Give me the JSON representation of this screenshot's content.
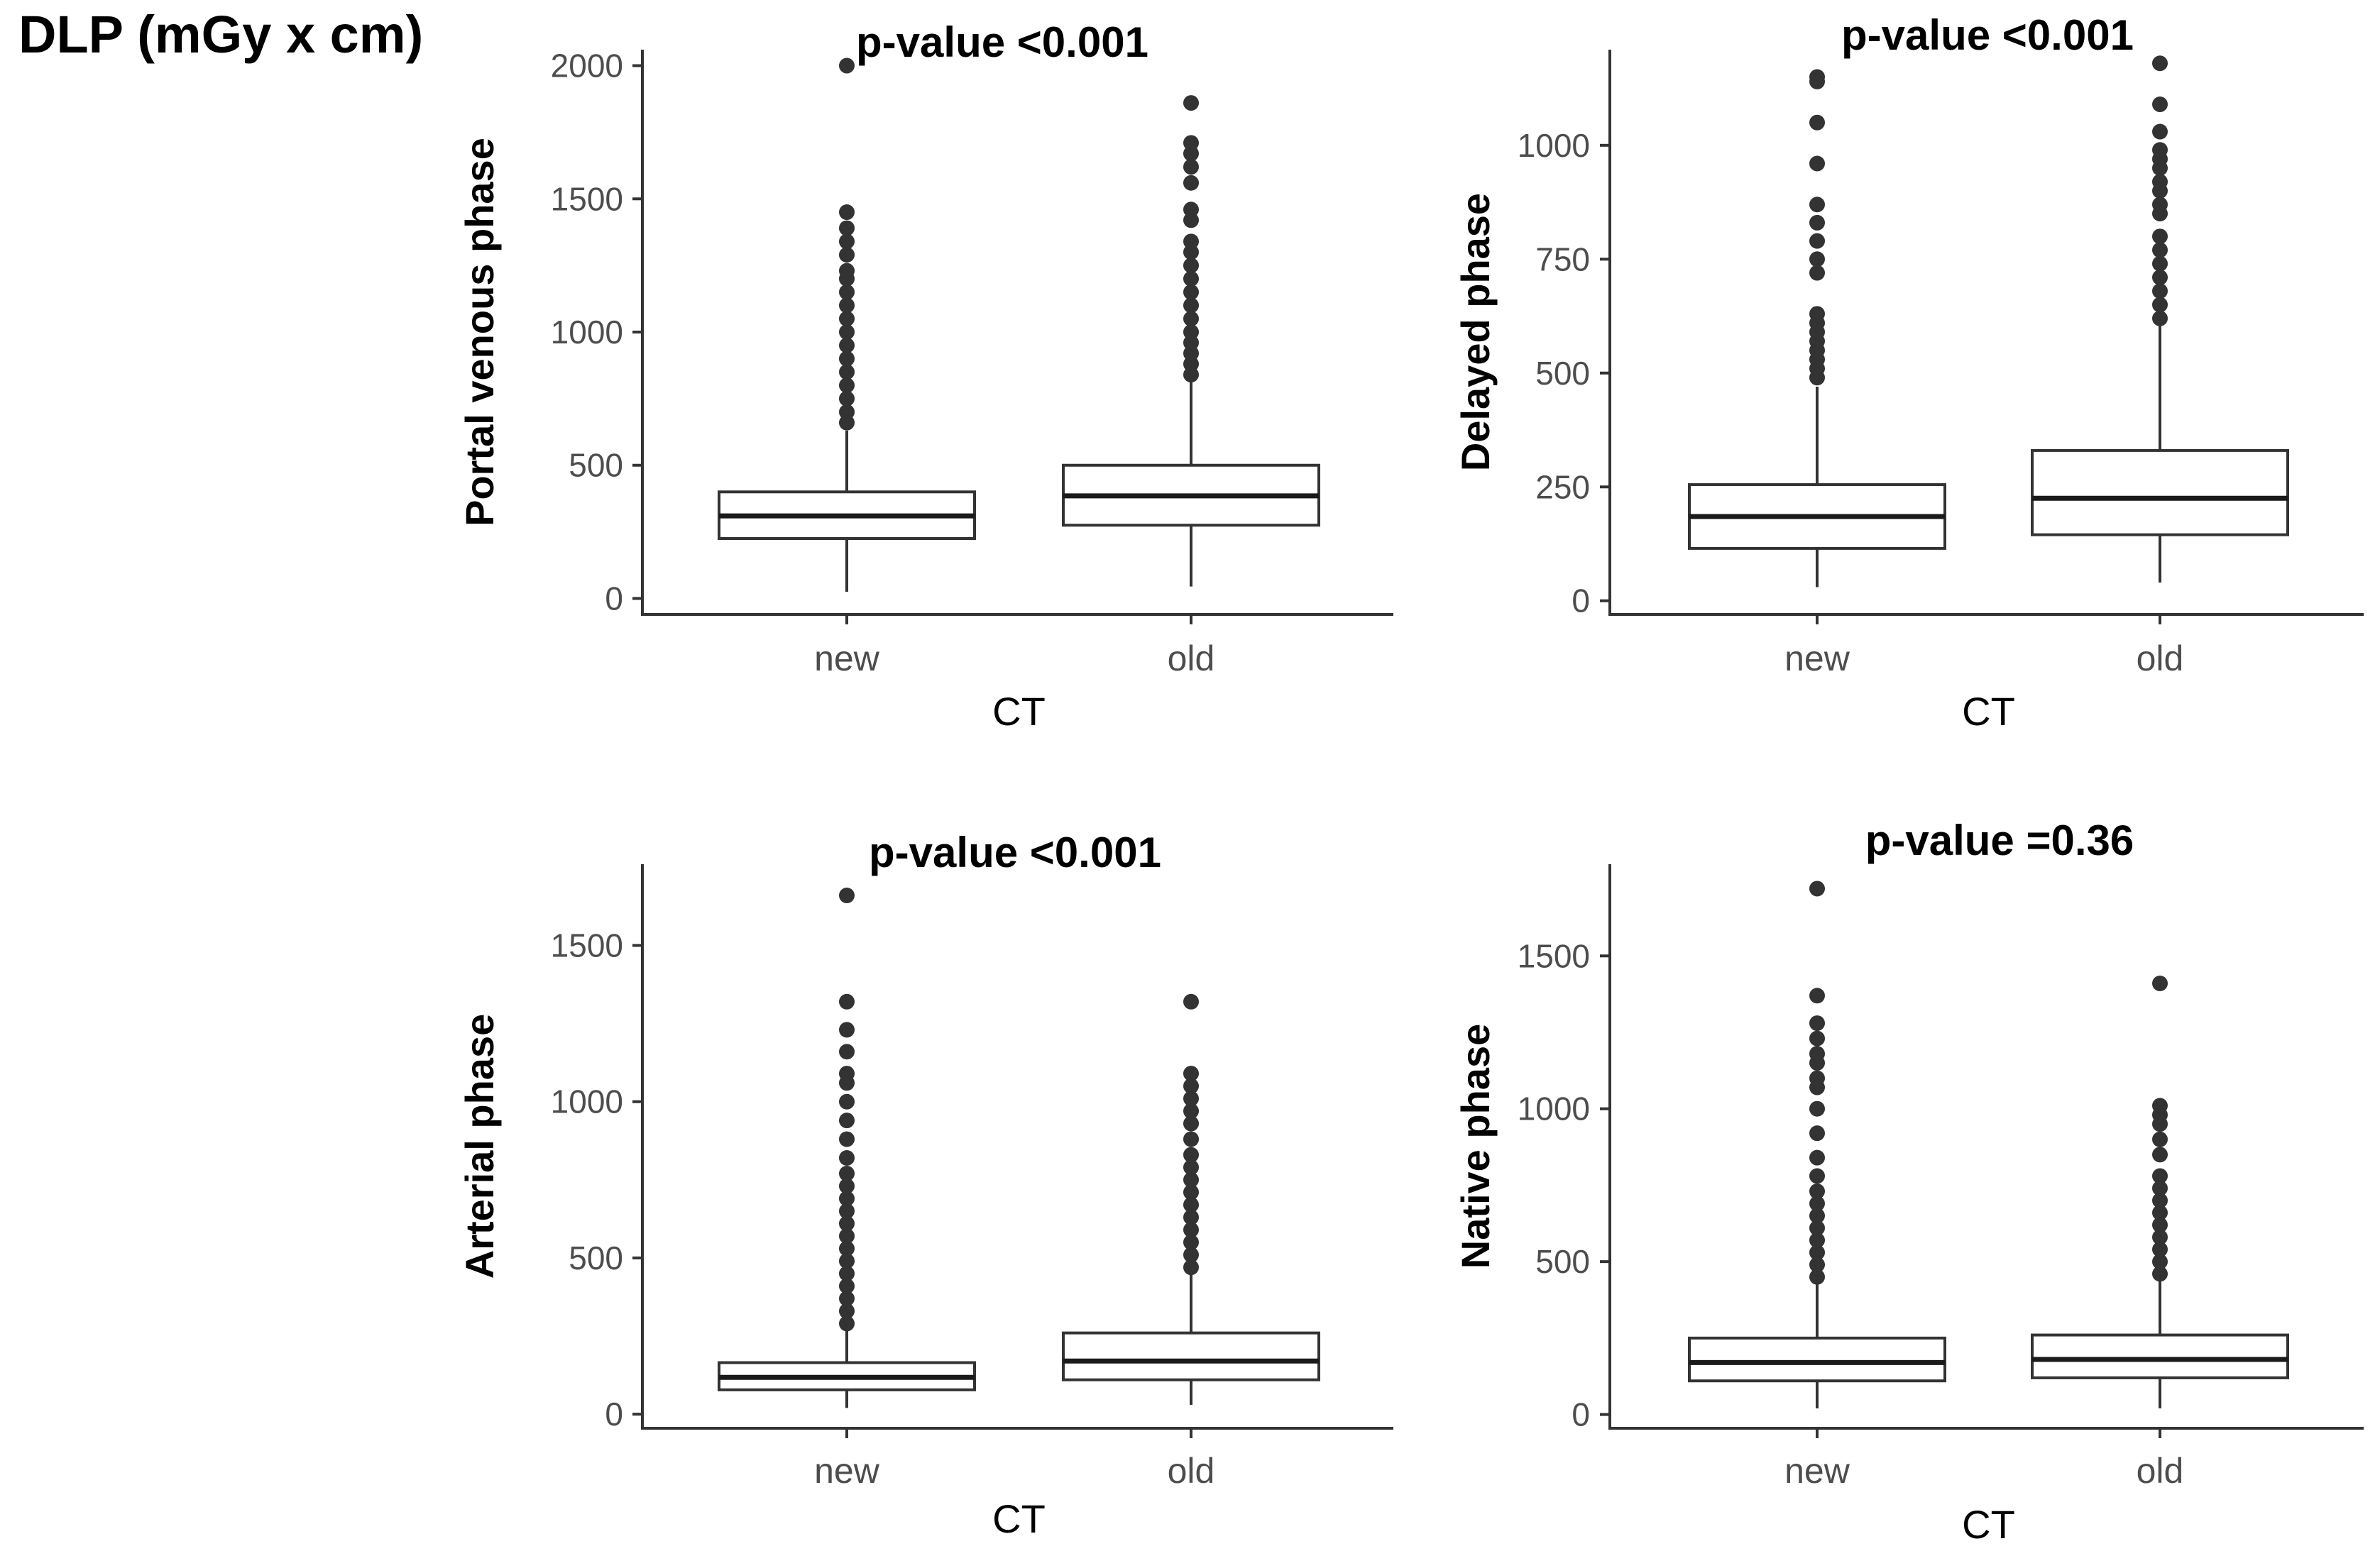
{
  "figure": {
    "title": "DLP (mGy x cm)"
  },
  "chart_data": [
    {
      "type": "boxplot",
      "id": "portal",
      "pvalue": "p-value <0.001",
      "xlabel": "CT",
      "ylabel": "Portal venous phase",
      "categories": [
        "new",
        "old"
      ],
      "ylim": [
        -60,
        2060
      ],
      "yticks": [
        0,
        500,
        1000,
        1500,
        2000
      ],
      "ytick_labels": [
        "0",
        "500",
        "1000",
        "1500",
        "2000"
      ],
      "boxes": [
        {
          "category": "new",
          "whisker_low": 25,
          "q1": 225,
          "median": 310,
          "q3": 400,
          "whisker_high": 630,
          "outliers": [
            660,
            700,
            750,
            800,
            850,
            900,
            950,
            1000,
            1050,
            1100,
            1150,
            1200,
            1230,
            1290,
            1340,
            1390,
            1450,
            2000
          ]
        },
        {
          "category": "old",
          "whisker_low": 45,
          "q1": 275,
          "median": 385,
          "q3": 500,
          "whisker_high": 815,
          "outliers": [
            840,
            880,
            920,
            960,
            1000,
            1050,
            1100,
            1150,
            1200,
            1250,
            1300,
            1340,
            1420,
            1460,
            1560,
            1620,
            1670,
            1710,
            1860
          ]
        }
      ]
    },
    {
      "type": "boxplot",
      "id": "delayed",
      "pvalue": "p-value <0.001",
      "xlabel": "CT",
      "ylabel": "Delayed phase",
      "categories": [
        "new",
        "old"
      ],
      "ylim": [
        -30,
        1210
      ],
      "yticks": [
        0,
        250,
        500,
        750,
        1000
      ],
      "ytick_labels": [
        "0",
        "250",
        "500",
        "750",
        "1000"
      ],
      "boxes": [
        {
          "category": "new",
          "whisker_low": 30,
          "q1": 115,
          "median": 185,
          "q3": 255,
          "whisker_high": 470,
          "outliers": [
            490,
            510,
            530,
            550,
            570,
            590,
            610,
            630,
            720,
            750,
            790,
            830,
            870,
            960,
            1050,
            1140,
            1150
          ]
        },
        {
          "category": "old",
          "whisker_low": 40,
          "q1": 145,
          "median": 225,
          "q3": 330,
          "whisker_high": 605,
          "outliers": [
            620,
            650,
            680,
            710,
            740,
            770,
            800,
            850,
            870,
            900,
            920,
            950,
            970,
            990,
            1030,
            1090,
            1180
          ]
        }
      ]
    },
    {
      "type": "boxplot",
      "id": "arterial",
      "pvalue": "p-value <0.001",
      "xlabel": "CT",
      "ylabel": "Arterial phase",
      "categories": [
        "new",
        "old"
      ],
      "ylim": [
        -45,
        1760
      ],
      "yticks": [
        0,
        500,
        1000,
        1500
      ],
      "ytick_labels": [
        "0",
        "500",
        "1000",
        "1500"
      ],
      "boxes": [
        {
          "category": "new",
          "whisker_low": 20,
          "q1": 78,
          "median": 118,
          "q3": 165,
          "whisker_high": 290,
          "outliers": [
            290,
            330,
            370,
            410,
            450,
            490,
            530,
            570,
            610,
            650,
            690,
            730,
            770,
            820,
            880,
            940,
            1000,
            1060,
            1090,
            1160,
            1230,
            1320,
            1660
          ]
        },
        {
          "category": "old",
          "whisker_low": 30,
          "q1": 110,
          "median": 170,
          "q3": 260,
          "whisker_high": 460,
          "outliers": [
            470,
            510,
            550,
            590,
            630,
            670,
            710,
            750,
            790,
            830,
            880,
            930,
            970,
            1010,
            1050,
            1090,
            1320
          ]
        }
      ]
    },
    {
      "type": "boxplot",
      "id": "native",
      "pvalue": "p-value =0.36",
      "xlabel": "CT",
      "ylabel": "Native phase",
      "categories": [
        "new",
        "old"
      ],
      "ylim": [
        -45,
        1800
      ],
      "yticks": [
        0,
        500,
        1000,
        1500
      ],
      "ytick_labels": [
        "0",
        "500",
        "1000",
        "1500"
      ],
      "boxes": [
        {
          "category": "new",
          "whisker_low": 20,
          "q1": 110,
          "median": 170,
          "q3": 250,
          "whisker_high": 440,
          "outliers": [
            450,
            490,
            530,
            570,
            610,
            650,
            690,
            730,
            780,
            840,
            920,
            1000,
            1070,
            1100,
            1150,
            1180,
            1230,
            1280,
            1370,
            1720
          ]
        },
        {
          "category": "old",
          "whisker_low": 20,
          "q1": 120,
          "median": 180,
          "q3": 260,
          "whisker_high": 460,
          "outliers": [
            460,
            500,
            540,
            580,
            620,
            660,
            700,
            740,
            780,
            850,
            900,
            950,
            980,
            1010,
            1410
          ]
        }
      ]
    }
  ]
}
